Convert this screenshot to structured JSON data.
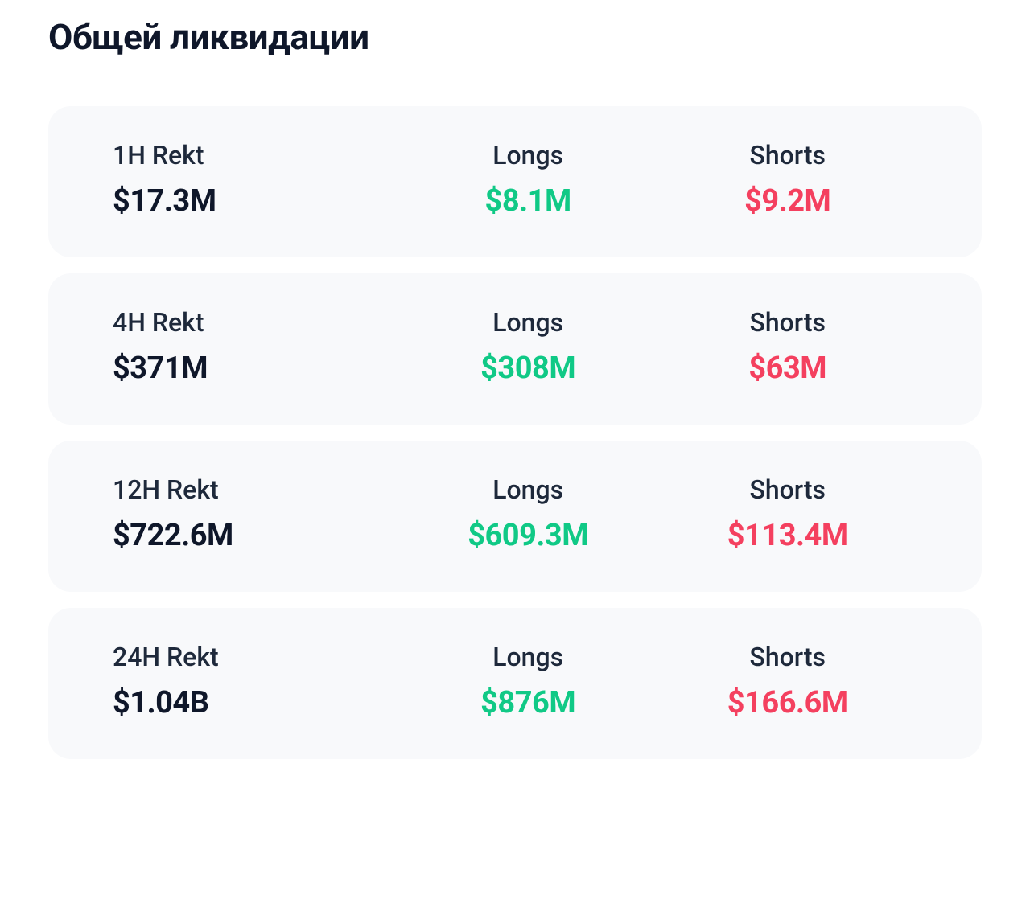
{
  "title": "Общей ликвидации",
  "labels": {
    "longs": "Longs",
    "shorts": "Shorts"
  },
  "colors": {
    "background": "#ffffff",
    "card_background": "#f8f9fb",
    "text_primary": "#0f172a",
    "text_label": "#1e293b",
    "longs": "#10c986",
    "shorts": "#f4405f"
  },
  "typography": {
    "title_fontsize": 44,
    "label_fontsize": 32,
    "value_fontsize": 38,
    "title_weight": 700,
    "label_weight": 500,
    "value_weight": 700
  },
  "layout": {
    "card_radius": 28,
    "card_gap": 20,
    "columns": 3
  },
  "rows": [
    {
      "period_label": "1H  Rekt",
      "rekt_value": "$17.3M",
      "longs_value": "$8.1M",
      "shorts_value": "$9.2M"
    },
    {
      "period_label": "4H Rekt",
      "rekt_value": "$371M",
      "longs_value": "$308M",
      "shorts_value": "$63M"
    },
    {
      "period_label": "12H Rekt",
      "rekt_value": "$722.6M",
      "longs_value": "$609.3M",
      "shorts_value": "$113.4M"
    },
    {
      "period_label": "24H Rekt",
      "rekt_value": "$1.04B",
      "longs_value": "$876M",
      "shorts_value": "$166.6M"
    }
  ]
}
